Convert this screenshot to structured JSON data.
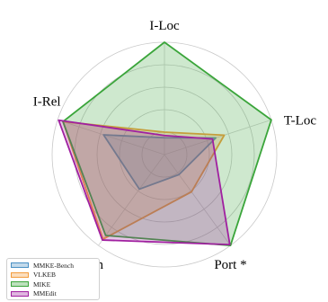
{
  "chart_data": {
    "type": "radar",
    "axes": [
      "I-Loc",
      "T-Loc",
      "Port *",
      "I-Gen",
      "I-Rel"
    ],
    "rlim": [
      0,
      100
    ],
    "grid": true,
    "legend_position": "bottom-left",
    "series": [
      {
        "name": "MMKE-Bench",
        "color": "#4a90c4",
        "values": [
          15,
          48,
          22,
          38,
          57
        ]
      },
      {
        "name": "VLKEB",
        "color": "#f39c3c",
        "values": [
          20,
          56,
          41,
          93,
          95
        ]
      },
      {
        "name": "MIKE",
        "color": "#3aa53a",
        "values": [
          100,
          100,
          100,
          89,
          95
        ]
      },
      {
        "name": "MMEdit",
        "color": "#a020a0",
        "values": [
          17,
          45,
          99,
          94,
          99
        ]
      }
    ]
  }
}
